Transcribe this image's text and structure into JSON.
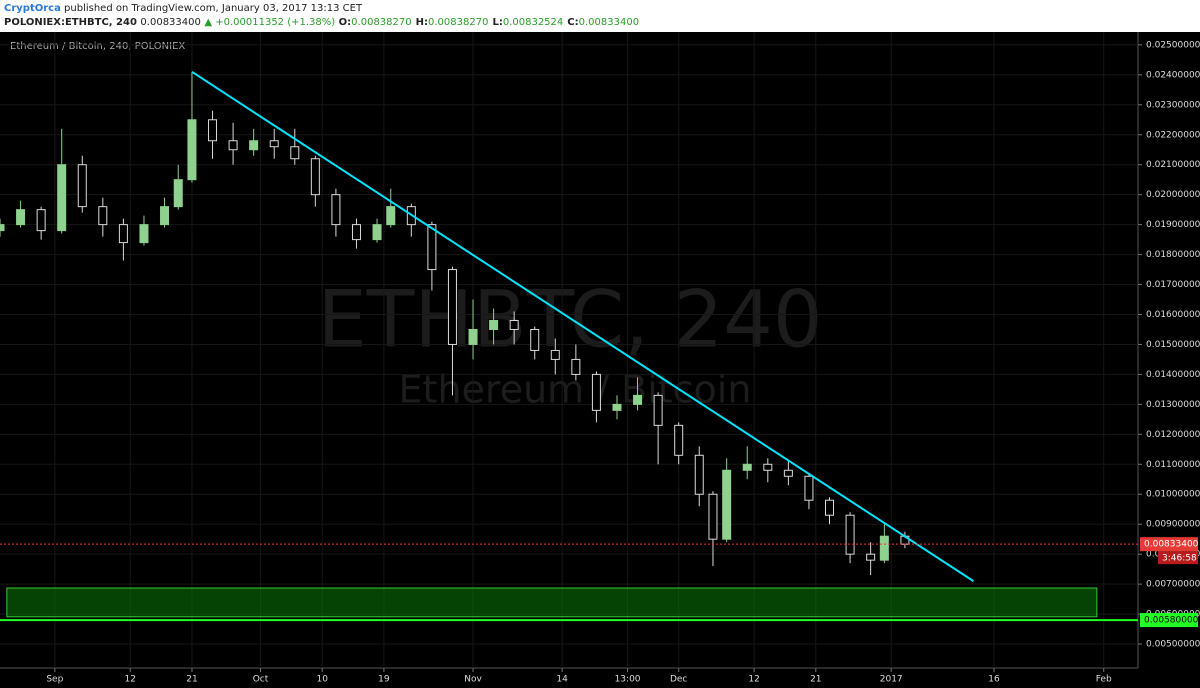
{
  "header": {
    "author": "CryptOrca",
    "published": "published on TradingView.com, January 03, 2017 13:13 CET",
    "symbol": "POLONIEX:ETHBTC, 240",
    "last": "0.00833400",
    "change": "▲ +0.00011352 (+1.38%)",
    "ohlc": [
      {
        "label": "O:",
        "value": "0.00838270"
      },
      {
        "label": "H:",
        "value": "0.00838270"
      },
      {
        "label": "L:",
        "value": "0.00832524"
      },
      {
        "label": "C:",
        "value": "0.00833400"
      }
    ]
  },
  "chart_data": {
    "type": "candlestick",
    "title": "Ethereum / Bitcoin, 240, POLONIEX",
    "watermark": "ETHBTC, 240",
    "watermark_subtitle": "Ethereum / Bitcoin",
    "x": [
      "2016-08-24",
      "2016-08-27",
      "2016-08-30",
      "2016-09-02",
      "2016-09-05",
      "2016-09-08",
      "2016-09-11",
      "2016-09-14",
      "2016-09-17",
      "2016-09-19",
      "2016-09-21",
      "2016-09-24",
      "2016-09-27",
      "2016-09-30",
      "2016-10-03",
      "2016-10-06",
      "2016-10-09",
      "2016-10-12",
      "2016-10-15",
      "2016-10-18",
      "2016-10-20",
      "2016-10-23",
      "2016-10-26",
      "2016-10-29",
      "2016-11-01",
      "2016-11-04",
      "2016-11-07",
      "2016-11-10",
      "2016-11-13",
      "2016-11-16",
      "2016-11-19",
      "2016-11-22",
      "2016-11-25",
      "2016-11-28",
      "2016-12-01",
      "2016-12-04",
      "2016-12-06",
      "2016-12-08",
      "2016-12-11",
      "2016-12-14",
      "2016-12-17",
      "2016-12-20",
      "2016-12-23",
      "2016-12-26",
      "2016-12-29",
      "2016-12-31",
      "2017-01-03"
    ],
    "open": [
      0.0188,
      0.019,
      0.0195,
      0.0188,
      0.021,
      0.0196,
      0.019,
      0.0184,
      0.019,
      0.0196,
      0.0205,
      0.0225,
      0.0218,
      0.0215,
      0.0218,
      0.0216,
      0.0212,
      0.02,
      0.019,
      0.0185,
      0.019,
      0.0196,
      0.019,
      0.0175,
      0.015,
      0.0155,
      0.0158,
      0.0155,
      0.0148,
      0.0145,
      0.014,
      0.0128,
      0.013,
      0.0133,
      0.0123,
      0.0113,
      0.01,
      0.0085,
      0.0108,
      0.011,
      0.0108,
      0.0106,
      0.0098,
      0.0093,
      0.008,
      0.0078,
      0.0086
    ],
    "high": [
      0.0192,
      0.0198,
      0.0196,
      0.0222,
      0.0213,
      0.0199,
      0.0192,
      0.0193,
      0.0199,
      0.021,
      0.0241,
      0.0228,
      0.0224,
      0.0222,
      0.0222,
      0.0222,
      0.0213,
      0.0202,
      0.0192,
      0.0192,
      0.0202,
      0.0197,
      0.0191,
      0.0176,
      0.0165,
      0.0162,
      0.0161,
      0.0156,
      0.0152,
      0.015,
      0.0141,
      0.0133,
      0.0139,
      0.0134,
      0.0124,
      0.0116,
      0.0101,
      0.0112,
      0.0116,
      0.0112,
      0.0111,
      0.0107,
      0.0099,
      0.0094,
      0.0084,
      0.009,
      0.00875
    ],
    "low": [
      0.0186,
      0.0189,
      0.0185,
      0.0187,
      0.0194,
      0.0186,
      0.0178,
      0.0183,
      0.0189,
      0.0195,
      0.0204,
      0.0212,
      0.021,
      0.0213,
      0.0212,
      0.021,
      0.0196,
      0.0186,
      0.0182,
      0.0184,
      0.0189,
      0.0186,
      0.0168,
      0.0133,
      0.0145,
      0.015,
      0.015,
      0.0145,
      0.014,
      0.0138,
      0.0124,
      0.0125,
      0.0128,
      0.011,
      0.011,
      0.0096,
      0.0076,
      0.0084,
      0.0105,
      0.0104,
      0.0103,
      0.0095,
      0.009,
      0.0077,
      0.0073,
      0.0077,
      0.0082
    ],
    "close": [
      0.019,
      0.0195,
      0.0188,
      0.021,
      0.0196,
      0.019,
      0.0184,
      0.019,
      0.0196,
      0.0205,
      0.0225,
      0.0218,
      0.0215,
      0.0218,
      0.0216,
      0.0212,
      0.02,
      0.019,
      0.0185,
      0.019,
      0.0196,
      0.019,
      0.0175,
      0.015,
      0.0155,
      0.0158,
      0.0155,
      0.0148,
      0.0145,
      0.014,
      0.0128,
      0.013,
      0.0133,
      0.0123,
      0.0113,
      0.01,
      0.0085,
      0.0108,
      0.011,
      0.0108,
      0.0106,
      0.0098,
      0.0093,
      0.008,
      0.0078,
      0.0086,
      0.008334
    ],
    "up_color": "#8fd18f",
    "down_color": "#d9d9d9",
    "xlim": [
      "2016-08-24",
      "2017-02-06"
    ],
    "xticks": [
      {
        "value": "2016-09-01",
        "label": "Sep"
      },
      {
        "value": "2016-09-12",
        "label": "12"
      },
      {
        "value": "2016-09-21",
        "label": "21"
      },
      {
        "value": "2016-10-01",
        "label": "Oct"
      },
      {
        "value": "2016-10-10",
        "label": "10"
      },
      {
        "value": "2016-10-19",
        "label": "19"
      },
      {
        "value": "2016-11-01",
        "label": "Nov"
      },
      {
        "value": "2016-11-14",
        "label": "14"
      },
      {
        "value": "2016-11-23T13:00",
        "label": "13:00"
      },
      {
        "value": "2016-12-01",
        "label": "Dec"
      },
      {
        "value": "2016-12-12",
        "label": "12"
      },
      {
        "value": "2016-12-21",
        "label": "21"
      },
      {
        "value": "2017-01-01",
        "label": "2017"
      },
      {
        "value": "2017-01-16",
        "label": "16"
      },
      {
        "value": "2017-02-01",
        "label": "Feb"
      }
    ],
    "ylim": [
      0.0042,
      0.02543
    ],
    "yticks": [
      {
        "value": 0.005,
        "label": "0.00500000"
      },
      {
        "value": 0.006,
        "label": "0.00600000"
      },
      {
        "value": 0.007,
        "label": "0.00700000"
      },
      {
        "value": 0.008,
        "label": "0.00800000"
      },
      {
        "value": 0.009,
        "label": "0.00900000"
      },
      {
        "value": 0.01,
        "label": "0.01000000"
      },
      {
        "value": 0.011,
        "label": "0.01100000"
      },
      {
        "value": 0.012,
        "label": "0.01200000"
      },
      {
        "value": 0.013,
        "label": "0.01300000"
      },
      {
        "value": 0.014,
        "label": "0.01400000"
      },
      {
        "value": 0.015,
        "label": "0.01500000"
      },
      {
        "value": 0.016,
        "label": "0.01600000"
      },
      {
        "value": 0.017,
        "label": "0.01700000"
      },
      {
        "value": 0.018,
        "label": "0.01800000"
      },
      {
        "value": 0.019,
        "label": "0.01900000"
      },
      {
        "value": 0.02,
        "label": "0.02000000"
      },
      {
        "value": 0.021,
        "label": "0.02100000"
      },
      {
        "value": 0.022,
        "label": "0.02200000"
      },
      {
        "value": 0.023,
        "label": "0.02300000"
      },
      {
        "value": 0.024,
        "label": "0.02400000"
      },
      {
        "value": 0.025,
        "label": "0.02500000"
      }
    ],
    "grid": true,
    "trendline": {
      "x": [
        "2016-09-21",
        "2017-01-13"
      ],
      "y": [
        0.0241,
        0.0071
      ],
      "color": "#00e5ff"
    },
    "zone": {
      "x": [
        "2016-08-25",
        "2017-01-31"
      ],
      "y": [
        0.00591,
        0.00687
      ],
      "color": "#0a7a0a"
    },
    "levels": [
      {
        "value": 0.0058,
        "label": "0.00580000",
        "color": "#22ff22"
      },
      {
        "value": 0.008334,
        "label": "0.00833400",
        "color": "#e53935",
        "countdown": "3:46:58"
      }
    ]
  }
}
